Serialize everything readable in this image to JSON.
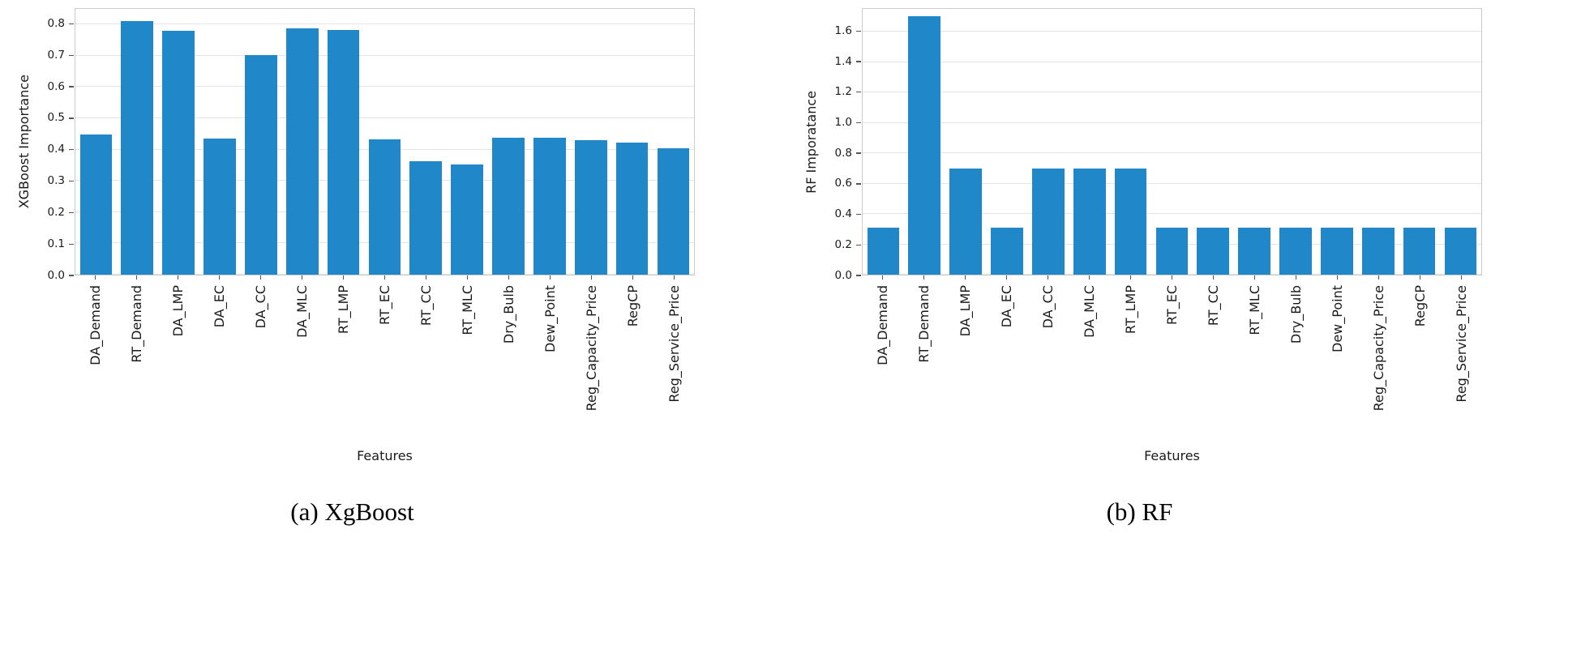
{
  "page": {
    "background": "#ffffff"
  },
  "chart_data": [
    {
      "type": "bar",
      "caption": "(a) XgBoost",
      "xlabel": "Features",
      "ylabel": "XGBoost Importance",
      "categories": [
        "DA_Demand",
        "RT_Demand",
        "DA_LMP",
        "DA_EC",
        "DA_CC",
        "DA_MLC",
        "RT_LMP",
        "RT_EC",
        "RT_CC",
        "RT_MLC",
        "Dry_Bulb",
        "Dew_Point",
        "Reg_Capacity_Price",
        "RegCP",
        "Reg_Service_Price"
      ],
      "values": [
        0.448,
        0.81,
        0.78,
        0.435,
        0.703,
        0.787,
        0.783,
        0.432,
        0.363,
        0.352,
        0.438,
        0.438,
        0.43,
        0.423,
        0.405
      ],
      "ylim": [
        0,
        0.85
      ],
      "yticks": [
        "0.0",
        "0.1",
        "0.2",
        "0.3",
        "0.4",
        "0.5",
        "0.6",
        "0.7",
        "0.8"
      ],
      "bar_color": "#2088c9",
      "grid": true,
      "legend": "none"
    },
    {
      "type": "bar",
      "caption": "(b) RF",
      "xlabel": "Features",
      "ylabel": "RF Imporatance",
      "categories": [
        "DA_Demand",
        "RT_Demand",
        "DA_LMP",
        "DA_EC",
        "DA_CC",
        "DA_MLC",
        "RT_LMP",
        "RT_EC",
        "RT_CC",
        "RT_MLC",
        "Dry_Bulb",
        "Dew_Point",
        "Reg_Capacity_Price",
        "RegCP",
        "Reg_Service_Price"
      ],
      "values": [
        0.31,
        1.7,
        0.7,
        0.31,
        0.7,
        0.7,
        0.7,
        0.31,
        0.31,
        0.31,
        0.31,
        0.31,
        0.31,
        0.31,
        0.31
      ],
      "ylim": [
        0,
        1.75
      ],
      "yticks": [
        "0.0",
        "0.2",
        "0.4",
        "0.6",
        "0.8",
        "1.0",
        "1.2",
        "1.4",
        "1.6"
      ],
      "bar_color": "#2088c9",
      "grid": true,
      "legend": "none"
    }
  ]
}
